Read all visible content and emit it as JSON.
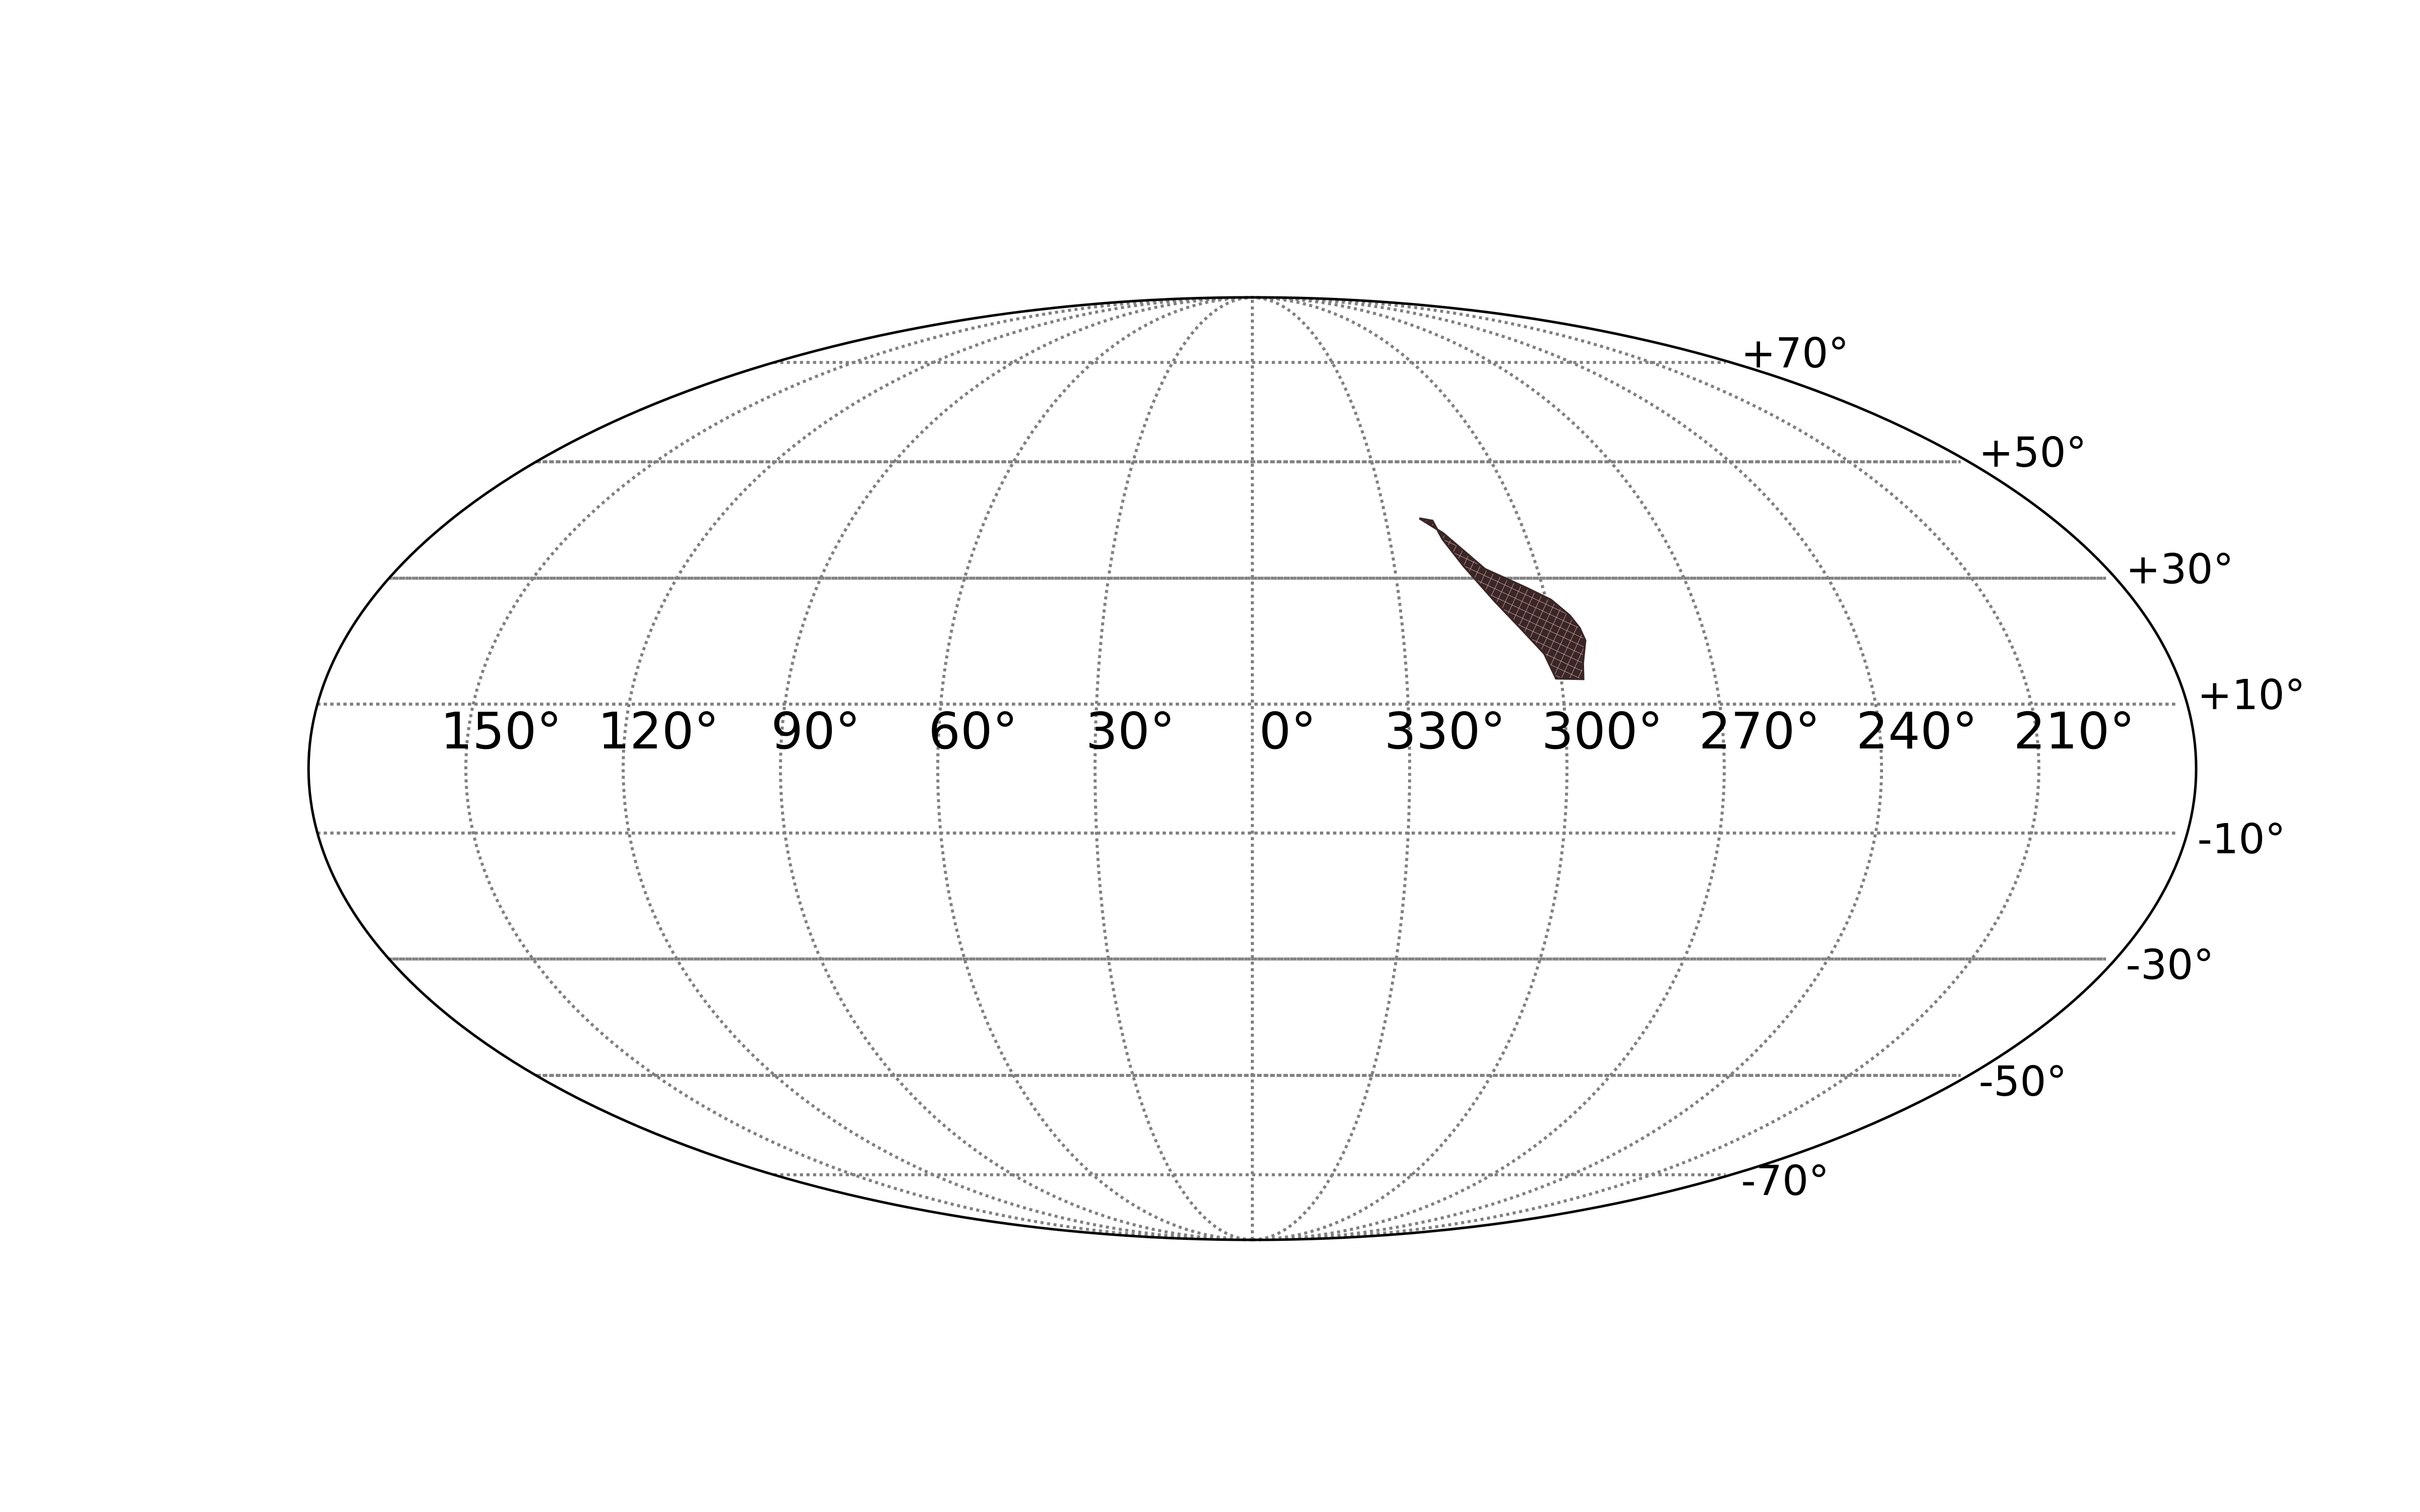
{
  "chart_data": {
    "type": "scatter",
    "projection": "mollweide",
    "grid": true,
    "title": "",
    "xlabel": "",
    "ylabel": "",
    "xlim": [
      -180,
      180
    ],
    "ylim": [
      -90,
      90
    ],
    "x_ticks": [
      {
        "value": 150,
        "label": "150°"
      },
      {
        "value": 120,
        "label": "120°"
      },
      {
        "value": 90,
        "label": "90°"
      },
      {
        "value": 60,
        "label": "60°"
      },
      {
        "value": 30,
        "label": "30°"
      },
      {
        "value": 0,
        "label": "0°"
      },
      {
        "value": 330,
        "label": "330°"
      },
      {
        "value": 300,
        "label": "300°"
      },
      {
        "value": 270,
        "label": "270°"
      },
      {
        "value": 240,
        "label": "240°"
      },
      {
        "value": 210,
        "label": "210°"
      }
    ],
    "y_ticks": [
      {
        "value": 70,
        "label": "+70°"
      },
      {
        "value": 50,
        "label": "+50°"
      },
      {
        "value": 30,
        "label": "+30°"
      },
      {
        "value": 10,
        "label": "+10°"
      },
      {
        "value": -10,
        "label": "-10°"
      },
      {
        "value": -30,
        "label": "-30°"
      },
      {
        "value": -50,
        "label": "-50°"
      },
      {
        "value": -70,
        "label": "-70°"
      }
    ],
    "region": {
      "outline": [
        [
          322.4,
          40.0
        ],
        [
          319.6,
          39.6
        ],
        [
          318.5,
          36.5
        ],
        [
          315.4,
          32.0
        ],
        [
          310.6,
          26.3
        ],
        [
          306.5,
          22.0
        ],
        [
          302.6,
          17.9
        ],
        [
          301.0,
          14.0
        ],
        [
          295.7,
          13.9
        ],
        [
          295.3,
          16.4
        ],
        [
          294.0,
          20.0
        ],
        [
          294.6,
          22.0
        ],
        [
          296.0,
          24.0
        ],
        [
          299.0,
          26.5
        ],
        [
          303.5,
          28.5
        ],
        [
          311.0,
          31.5
        ],
        [
          318.0,
          37.5
        ]
      ]
    },
    "colors": {
      "region_fill": "#3a2626",
      "region_mesh": "#c49a9a",
      "grid": "#808080",
      "frame": "#000000"
    }
  }
}
